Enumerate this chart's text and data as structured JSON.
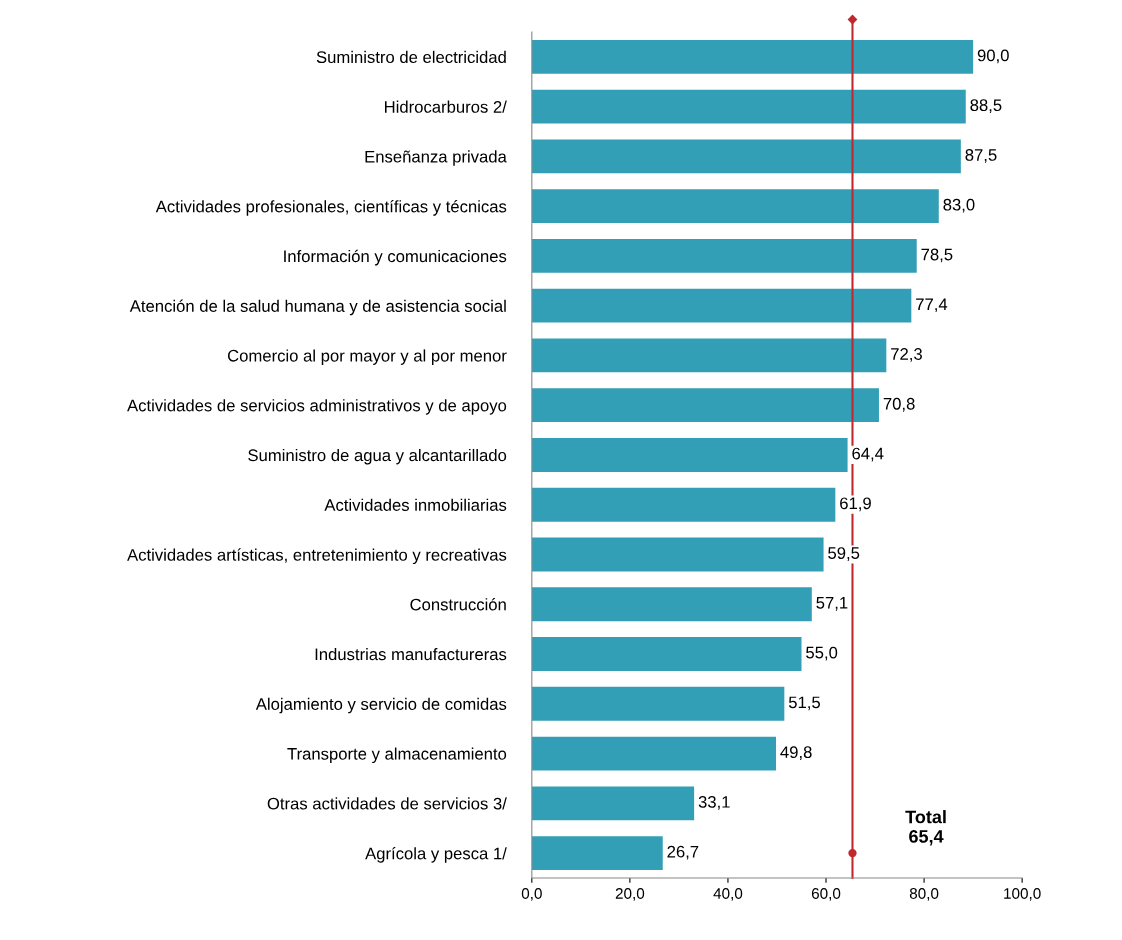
{
  "chart_data": {
    "type": "bar",
    "orientation": "horizontal",
    "categories": [
      "Suministro de electricidad",
      "Hidrocarburos 2/",
      "Enseñanza privada",
      "Actividades profesionales, científicas y técnicas",
      "Información y comunicaciones",
      "Atención de la salud humana y de asistencia social",
      "Comercio al por mayor y al por menor",
      "Actividades de servicios administrativos y de apoyo",
      "Suministro de agua y alcantarillado",
      "Actividades inmobiliarias",
      "Actividades artísticas, entretenimiento y recreativas",
      "Construcción",
      "Industrias manufactureras",
      "Alojamiento y servicio de comidas",
      "Transporte y almacenamiento",
      "Otras actividades de servicios 3/",
      "Agrícola y pesca 1/"
    ],
    "values": [
      90.0,
      88.5,
      87.5,
      83.0,
      78.5,
      77.4,
      72.3,
      70.8,
      64.4,
      61.9,
      59.5,
      57.1,
      55.0,
      51.5,
      49.8,
      33.1,
      26.7
    ],
    "value_labels": [
      "90,0",
      "88,5",
      "87,5",
      "83,0",
      "78,5",
      "77,4",
      "72,3",
      "70,8",
      "64,4",
      "61,9",
      "59,5",
      "57,1",
      "55,0",
      "51,5",
      "49,8",
      "33,1",
      "26,7"
    ],
    "color": "#339fb6",
    "xlim": [
      0,
      100
    ],
    "xticks": [
      {
        "value": 0,
        "label": "0,0"
      },
      {
        "value": 20,
        "label": "20,0"
      },
      {
        "value": 40,
        "label": "40,0"
      },
      {
        "value": 60,
        "label": "60,0"
      },
      {
        "value": 80,
        "label": "80,0"
      },
      {
        "value": 100,
        "label": "100,0"
      }
    ],
    "ref_lines": [
      {
        "axis": "x",
        "value": 65.4,
        "label": "Total\n65,4",
        "color": "#c0282d"
      }
    ],
    "grid": false,
    "legend": false
  }
}
